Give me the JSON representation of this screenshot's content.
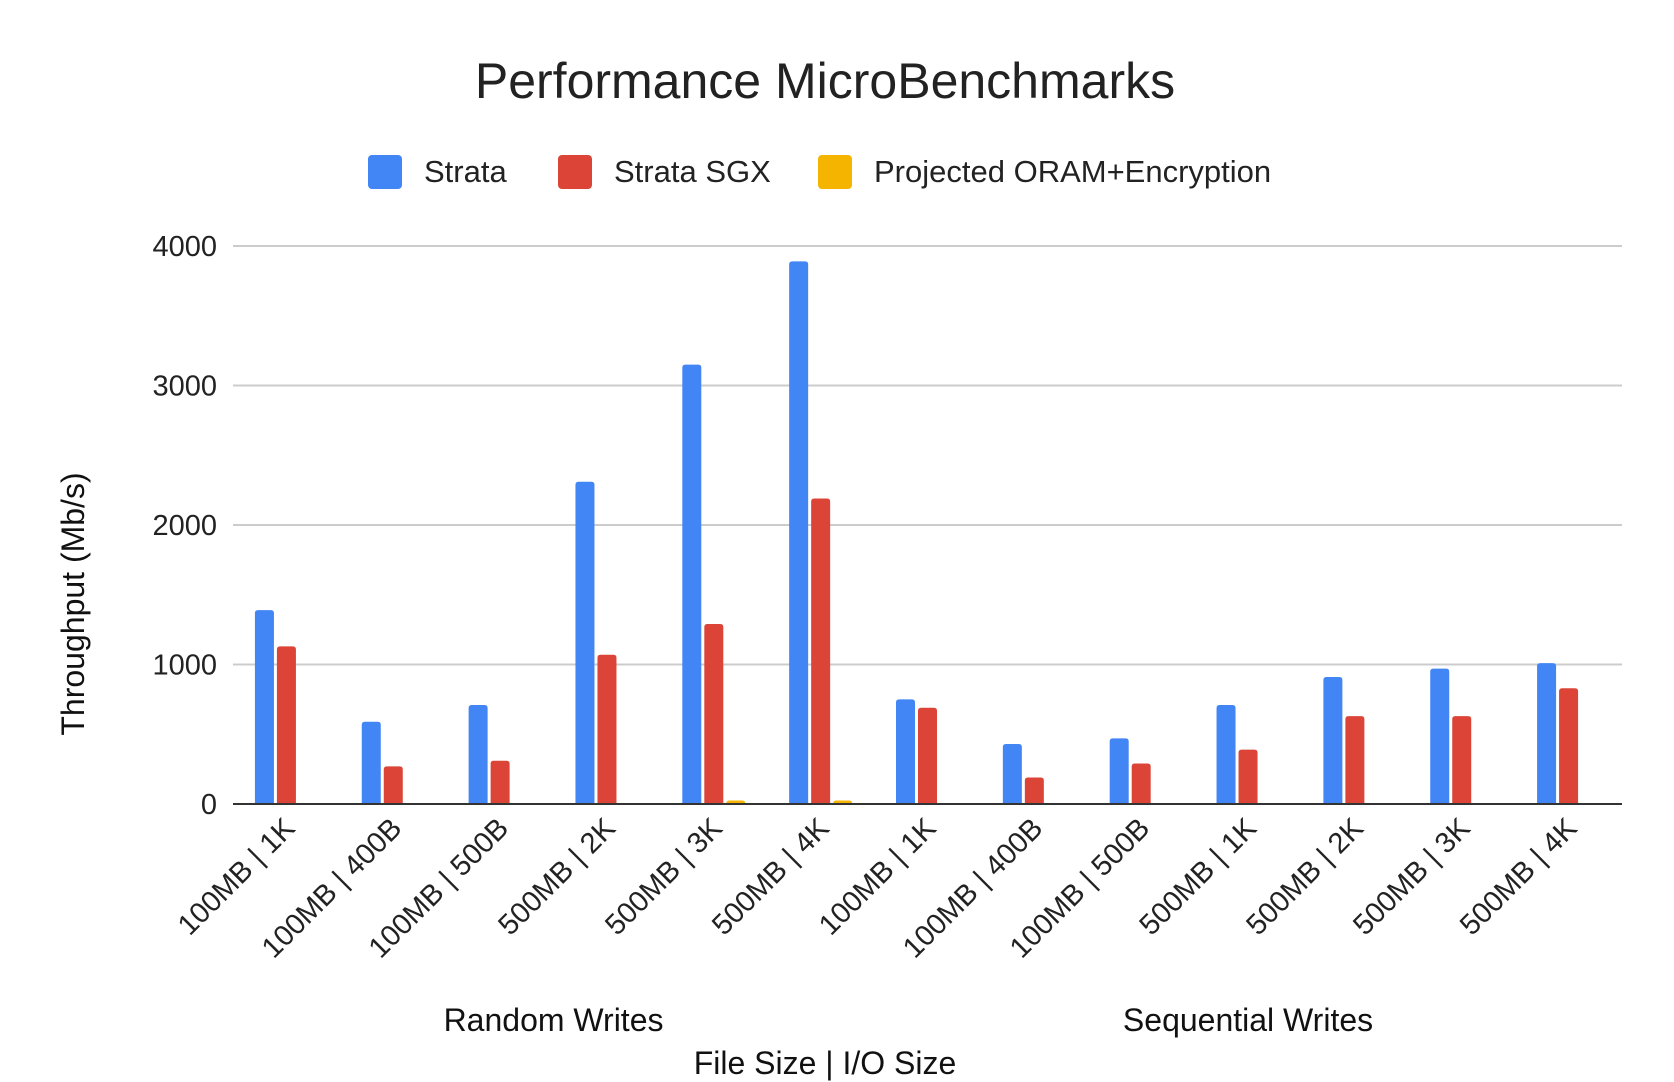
{
  "chart_data": {
    "type": "bar",
    "title": "Performance MicroBenchmarks",
    "xlabel": "File Size | I/O Size",
    "ylabel": "Throughput (Mb/s)",
    "ylim": [
      0,
      4000
    ],
    "yticks": [
      "0",
      "1000",
      "2000",
      "3000",
      "4000"
    ],
    "grid": true,
    "legend_position": "top",
    "groups": [
      {
        "label": "Random Writes",
        "categories": [
          0,
          1,
          2,
          3,
          4,
          5
        ]
      },
      {
        "label": "Sequential Writes",
        "categories": [
          6,
          7,
          8,
          9,
          10,
          11,
          12
        ]
      }
    ],
    "categories": [
      "100MB | 1K",
      "100MB | 400B",
      "100MB | 500B",
      "500MB | 2K",
      "500MB | 3K",
      "500MB | 4K",
      "100MB | 1K",
      "100MB | 400B",
      "100MB | 500B",
      "500MB | 1K",
      "500MB | 2K",
      "500MB | 3K",
      "500MB | 4K"
    ],
    "series": [
      {
        "name": "Strata",
        "color": "#4285f4",
        "values": [
          1390,
          590,
          710,
          2310,
          3150,
          3890,
          750,
          430,
          470,
          710,
          910,
          970,
          1010
        ]
      },
      {
        "name": "Strata SGX",
        "color": "#db4437",
        "values": [
          1130,
          270,
          310,
          1070,
          1290,
          2190,
          690,
          190,
          290,
          390,
          630,
          630,
          830
        ]
      },
      {
        "name": "Projected ORAM+Encryption",
        "color": "#f4b400",
        "values": [
          0,
          0,
          0,
          0,
          25,
          25,
          0,
          0,
          0,
          0,
          0,
          0,
          0
        ]
      }
    ]
  }
}
